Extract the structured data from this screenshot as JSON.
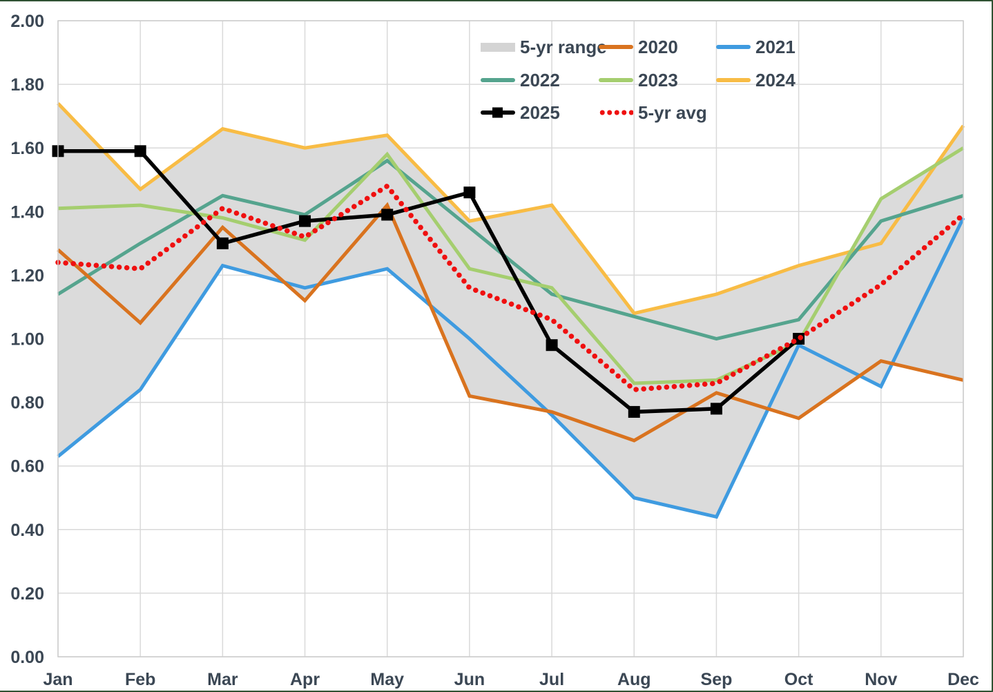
{
  "chart_data": {
    "type": "line",
    "title": "",
    "categories": [
      "Jan",
      "Feb",
      "Mar",
      "Apr",
      "May",
      "Jun",
      "Jul",
      "Aug",
      "Sep",
      "Oct",
      "Nov",
      "Dec"
    ],
    "y_ticks": [
      "0.00",
      "0.20",
      "0.40",
      "0.60",
      "0.80",
      "1.00",
      "1.20",
      "1.40",
      "1.60",
      "1.80",
      "2.00"
    ],
    "ylim": [
      0,
      2
    ],
    "y_step": 0.2,
    "grid": true,
    "legend_position": "top-right-inside",
    "band": {
      "name": "5-yr range",
      "color": "#DBDBDB",
      "lower": [
        0.63,
        0.84,
        1.23,
        1.12,
        1.22,
        0.82,
        0.76,
        0.5,
        0.44,
        0.75,
        0.85,
        0.87
      ],
      "upper": [
        1.74,
        1.47,
        1.66,
        1.6,
        1.64,
        1.37,
        1.42,
        1.08,
        1.14,
        1.23,
        1.44,
        1.67
      ]
    },
    "series": [
      {
        "name": "2020",
        "color": "#D9731F",
        "style": "solid",
        "values": [
          1.28,
          1.05,
          1.35,
          1.12,
          1.42,
          0.82,
          0.77,
          0.68,
          0.83,
          0.75,
          0.93,
          0.87
        ]
      },
      {
        "name": "2021",
        "color": "#3F9BE0",
        "style": "solid",
        "values": [
          0.63,
          0.84,
          1.23,
          1.16,
          1.22,
          1.0,
          0.76,
          0.5,
          0.44,
          0.98,
          0.85,
          1.38
        ]
      },
      {
        "name": "2022",
        "color": "#55A48E",
        "style": "solid",
        "values": [
          1.14,
          1.3,
          1.45,
          1.39,
          1.56,
          1.35,
          1.14,
          1.07,
          1.0,
          1.06,
          1.37,
          1.45
        ]
      },
      {
        "name": "2023",
        "color": "#A5CE6F",
        "style": "solid",
        "values": [
          1.41,
          1.42,
          1.38,
          1.31,
          1.58,
          1.22,
          1.16,
          0.86,
          0.87,
          0.99,
          1.44,
          1.6
        ]
      },
      {
        "name": "2024",
        "color": "#F8BC45",
        "style": "solid",
        "values": [
          1.74,
          1.47,
          1.66,
          1.6,
          1.64,
          1.37,
          1.42,
          1.08,
          1.14,
          1.23,
          1.3,
          1.67
        ]
      },
      {
        "name": "2025",
        "color": "#000000",
        "style": "solid",
        "marker": "square",
        "values": [
          1.59,
          1.59,
          1.3,
          1.37,
          1.39,
          1.46,
          0.98,
          0.77,
          0.78,
          1.0,
          null,
          null
        ]
      },
      {
        "name": "5-yr avg",
        "color": "#EF1010",
        "style": "dotted",
        "values": [
          1.24,
          1.22,
          1.41,
          1.32,
          1.48,
          1.16,
          1.06,
          0.84,
          0.86,
          1.0,
          1.17,
          1.39
        ]
      }
    ],
    "colors": {
      "text": "#3B4754",
      "grid": "#D9D9D9",
      "plot_border": "#CDCDCD",
      "frame": "#2F5233",
      "background": "#FFFFFF"
    }
  },
  "legend": {
    "items": [
      {
        "label": "5-yr range",
        "type": "band",
        "color": "#D4D4D4"
      },
      {
        "label": "2020",
        "type": "line",
        "color": "#D9731F"
      },
      {
        "label": "2021",
        "type": "line",
        "color": "#3F9BE0"
      },
      {
        "label": "2022",
        "type": "line",
        "color": "#55A48E"
      },
      {
        "label": "2023",
        "type": "line",
        "color": "#A5CE6F"
      },
      {
        "label": "2024",
        "type": "line",
        "color": "#F8BC45"
      },
      {
        "label": "2025",
        "type": "line-square",
        "color": "#000000"
      },
      {
        "label": "5-yr avg",
        "type": "dots",
        "color": "#EF1010"
      }
    ]
  }
}
